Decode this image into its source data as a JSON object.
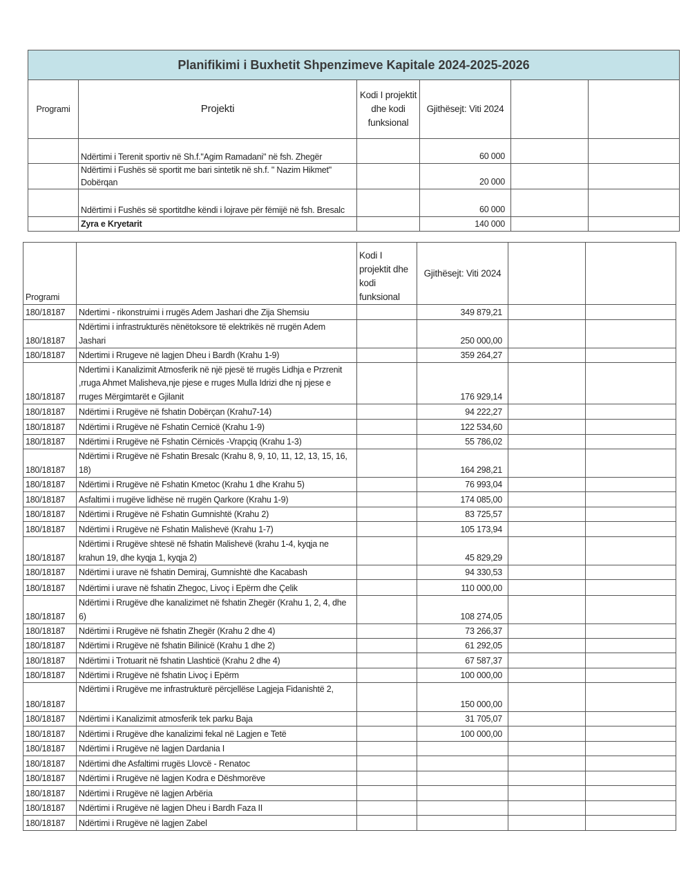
{
  "title": "Planifikimi i Buxhetit Shpenzimeve Kapitale 2024-2025-2026",
  "table1": {
    "headers": {
      "programi": "Programi",
      "projekti": "Projekti",
      "kodi": "Kodi I projektit dhe kodi funksional",
      "gjithesejt": "Gjithësejt: Viti 2024"
    },
    "rows": [
      {
        "programi": "",
        "projekti": "Ndërtimi i Terenit sportiv në Sh.f.\"Agim Ramadani\" në           fsh. Zhegër",
        "kodi": "",
        "vlera": "60 000"
      },
      {
        "programi": "",
        "projekti": "Ndërtimi i Fushës së sportit me bari sintetik në                    sh.f. \" Nazim Hikmet\"  Dobërqan",
        "kodi": "",
        "vlera": "20 000"
      },
      {
        "programi": "",
        "projekti": "Ndërtimi i Fushës së sportitdhe këndi i lojrave për fëmijë në fsh. Bresalc",
        "kodi": "",
        "vlera": "60 000"
      }
    ],
    "total": {
      "label": "Zyra e Kryetarit",
      "vlera": "140 000"
    }
  },
  "table2": {
    "headers": {
      "programi": "Programi",
      "projekti": "",
      "kodi": "Kodi I projektit dhe kodi funksional",
      "gjithesejt": "Gjithësejt: Viti 2024"
    },
    "rows": [
      {
        "programi": "180/18187",
        "projekti": "Ndertimi - rikonstruimi i rrugës Adem Jashari dhe Zija Shemsiu",
        "vlera": "349 879,21"
      },
      {
        "programi": "180/18187",
        "projekti": "Ndërtimi i infrastrukturës nënëtoksore të elektrikës në rrugën Adem Jashari",
        "vlera": "250 000,00"
      },
      {
        "programi": "180/18187",
        "projekti": "Ndertimi i Rrugeve në lagjen Dheu i Bardh  (Krahu 1-9)",
        "vlera": "359 264,27"
      },
      {
        "programi": "180/18187",
        "projekti": "Ndertimi i Kanalizimit Atmosferik në një pjesë të rrugës Lidhja e Przrenit ,rruga Ahmet Malisheva,nje pjese e rruges Mulla Idrizi dhe nj pjese e rruges Mërgimtarët e Gjilanit",
        "vlera": "176 929,14"
      },
      {
        "programi": "180/18187",
        "projekti": "Ndërtimi i Rrugëve  në fshatin Dobërçan   (Krahu7-14)",
        "vlera": "94 222,27"
      },
      {
        "programi": "180/18187",
        "projekti": "Ndërtimi i Rrugëve në Fshatin Cernicë     (Krahu 1-9)",
        "vlera": "122 534,60"
      },
      {
        "programi": "180/18187",
        "projekti": "Ndërtimi i Rrugëve në Fshatin Cërnicës -Vrapçiq (Krahu 1-3)",
        "vlera": "55 786,02"
      },
      {
        "programi": "180/18187",
        "projekti": "Ndërtimi i Rrugëve në Fshatin Bresalc     (Krahu 8, 9, 10, 11, 12, 13, 15, 16, 18)",
        "vlera": "164 298,21"
      },
      {
        "programi": "180/18187",
        "projekti": "Ndërtimi i Rrugëve në Fshatin Kmetoc  (Krahu 1 dhe Krahu 5)",
        "vlera": "76 993,04"
      },
      {
        "programi": "180/18187",
        "projekti": "Asfaltimi i rrugëve lidhëse në rrugën Qarkore (Krahu 1-9)",
        "vlera": "174 085,00"
      },
      {
        "programi": "180/18187",
        "projekti": "Ndërtimi i Rrugëve në Fshatin Gumnishtë (Krahu 2)",
        "vlera": "83 725,57"
      },
      {
        "programi": "180/18187",
        "projekti": "Ndërtimi i Rrugëve në Fshatin Malishevë (Krahu 1-7)",
        "vlera": "105 173,94"
      },
      {
        "programi": "180/18187",
        "projekti": "Ndërtimi i Rrugëve shtesë në fshatin Malishevë (krahu 1-4, kyqja ne krahun 19, dhe kyqja  1, kyqja 2)",
        "vlera": "45 829,29"
      },
      {
        "programi": "180/18187",
        "projekti": "Ndërtimi i urave në fshatin Demiraj, Gumnishtë dhe Kacabash",
        "vlera": "94 330,53"
      },
      {
        "programi": "180/18187",
        "projekti": "Ndërtimi i urave në fshatin Zhegoc, Livoç i Epërm dhe Çelik",
        "vlera": "110 000,00"
      },
      {
        "programi": "180/18187",
        "projekti": "Ndërtimi i Rrugëve dhe kanalizimet në fshatin Zhegër (Krahu 1, 2, 4, dhe 6)",
        "vlera": "108 274,05"
      },
      {
        "programi": "180/18187",
        "projekti": "Ndërtimi i Rrugëve në fshatin Zhegër (Krahu 2 dhe 4)",
        "vlera": "73 266,37"
      },
      {
        "programi": "180/18187",
        "projekti": "Ndërtimi i Rrugëve në fshatin Bilinicë (Krahu 1 dhe 2)",
        "vlera": "61 292,05"
      },
      {
        "programi": "180/18187",
        "projekti": "Ndërtimi i Trotuarit në fshatin Llashticë (Krahu 2 dhe 4)",
        "vlera": "67 587,37"
      },
      {
        "programi": "180/18187",
        "projekti": "Ndërtimi i Rrugëve në fshatin Livoç i Epërm",
        "vlera": "100 000,00"
      },
      {
        "programi": "180/18187",
        "projekti": "Ndërtimi i Rrugëve me infrastrukturë përcjellëse Lagjeja Fidanishtë 2,",
        "vlera": "150 000,00",
        "top": true
      },
      {
        "programi": "180/18187",
        "projekti": "Ndërtimi i Kanalizimit atmosferik tek parku Baja",
        "vlera": "31 705,07"
      },
      {
        "programi": "180/18187",
        "projekti": "Ndërtimi i Rrugëve dhe kanalizimi fekal në Lagjen e Tetë",
        "vlera": "100 000,00"
      },
      {
        "programi": "180/18187",
        "projekti": "Ndërtimi i Rrugëve në lagjen Dardania I",
        "vlera": ""
      },
      {
        "programi": "180/18187",
        "projekti": "Ndërtimi dhe Asfaltimi  rrugës Llovcë - Renatoc",
        "vlera": ""
      },
      {
        "programi": "180/18187",
        "projekti": "Ndërtimi i Rrugëve në lagjen Kodra e Dëshmorëve",
        "vlera": ""
      },
      {
        "programi": "180/18187",
        "projekti": "Ndërtimi i Rrugëve në lagjen Arbëria",
        "vlera": ""
      },
      {
        "programi": "180/18187",
        "projekti": "Ndërtimi i Rrugëve në lagjen Dheu i Bardh Faza II",
        "vlera": ""
      },
      {
        "programi": "180/18187",
        "projekti": "Ndërtimi i Rrugëve në lagjen Zabel",
        "vlera": ""
      }
    ]
  }
}
